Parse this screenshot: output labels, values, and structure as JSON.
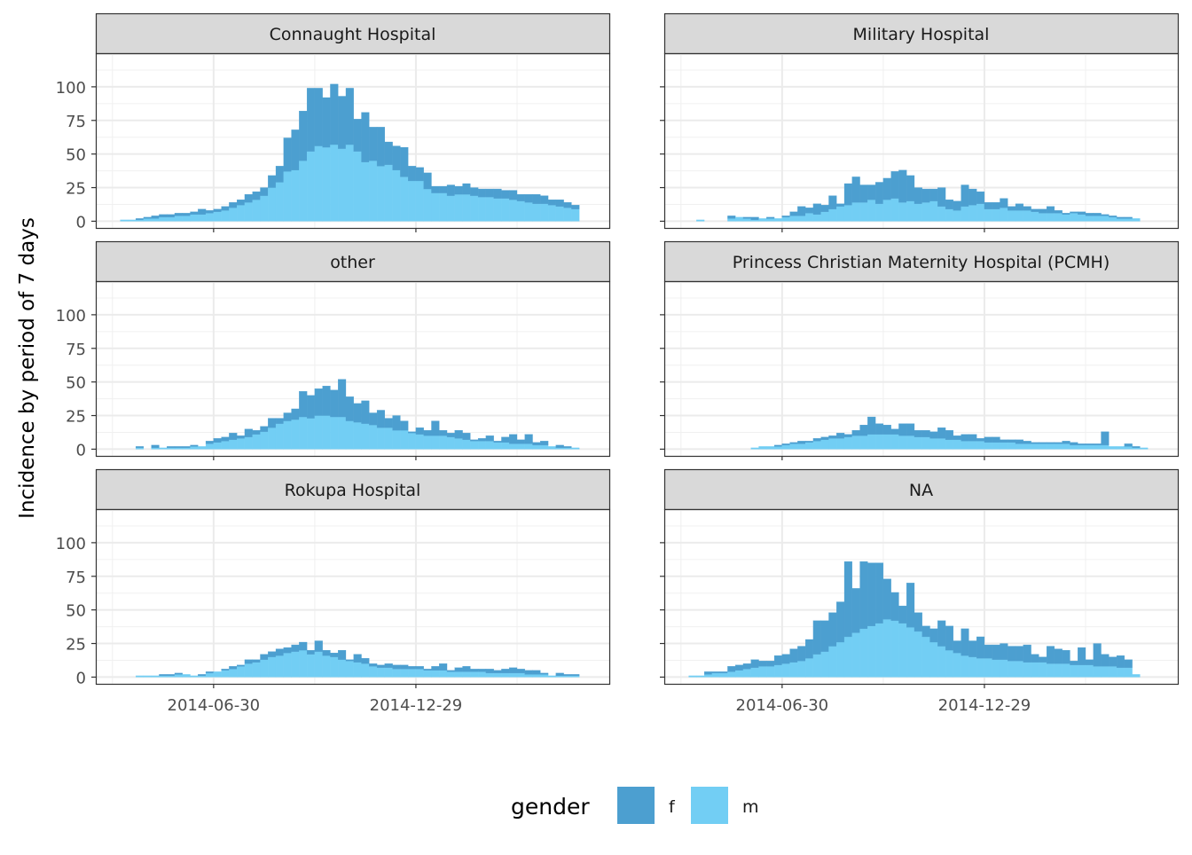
{
  "chart_data": {
    "type": "bar",
    "subtype": "faceted stacked histogram",
    "ylabel": "Incidence by period of 7 days",
    "xlabel": "",
    "ylim": [
      -5,
      125
    ],
    "y_ticks": [
      0,
      25,
      50,
      75,
      100
    ],
    "x_range": [
      "2014-03-16",
      "2015-06-21"
    ],
    "x_ticks": [
      "2014-06-30",
      "2014-12-29"
    ],
    "bin_start": "2014-04-07",
    "bin_days": 7,
    "legend": {
      "title": "gender",
      "position": "bottom",
      "entries": [
        {
          "key": "f",
          "label": "f",
          "color": "#4C9FD0"
        },
        {
          "key": "m",
          "label": "m",
          "color": "#72CEF4"
        }
      ]
    },
    "grid": true,
    "facets": [
      {
        "title": "Connaught Hospital",
        "m": [
          1,
          1,
          1,
          2,
          2,
          3,
          3,
          4,
          4,
          5,
          5,
          6,
          7,
          8,
          10,
          12,
          14,
          16,
          19,
          25,
          29,
          37,
          38,
          45,
          52,
          56,
          55,
          57,
          54,
          57,
          52,
          44,
          45,
          41,
          42,
          38,
          33,
          30,
          30,
          24,
          21,
          21,
          19,
          20,
          20,
          19,
          18,
          18,
          17,
          17,
          16,
          15,
          14,
          13,
          13,
          12,
          11,
          10,
          9
        ],
        "f": [
          0,
          0,
          1,
          1,
          2,
          2,
          2,
          2,
          2,
          2,
          4,
          2,
          2,
          3,
          4,
          4,
          6,
          6,
          6,
          9,
          12,
          25,
          30,
          37,
          47,
          43,
          37,
          45,
          39,
          42,
          24,
          37,
          25,
          29,
          17,
          18,
          22,
          11,
          10,
          12,
          5,
          5,
          8,
          6,
          8,
          6,
          6,
          6,
          7,
          6,
          7,
          5,
          6,
          7,
          6,
          4,
          5,
          4,
          3
        ],
        "lanes": [
          0,
          1,
          1,
          0,
          1,
          0,
          1,
          0,
          1,
          0,
          1,
          0,
          1,
          0,
          1,
          0,
          1,
          0,
          1,
          0,
          1,
          0,
          1,
          0,
          1,
          0,
          1,
          0,
          1,
          0,
          1,
          0,
          1,
          0,
          1,
          0,
          1,
          0,
          1,
          0,
          1,
          0,
          1,
          0,
          1,
          0,
          1,
          0,
          1,
          0,
          1,
          0,
          1,
          0,
          1,
          0,
          1,
          0,
          1
        ]
      },
      {
        "title": "Military Hospital",
        "m": [
          0,
          1,
          0,
          0,
          0,
          2,
          3,
          2,
          1,
          2,
          2,
          2,
          3,
          4,
          4,
          6,
          5,
          7,
          9,
          11,
          12,
          14,
          14,
          16,
          13,
          16,
          17,
          14,
          15,
          13,
          14,
          15,
          11,
          9,
          8,
          11,
          12,
          13,
          9,
          9,
          10,
          8,
          8,
          8,
          7,
          6,
          6,
          6,
          5,
          6,
          5,
          4,
          4,
          4,
          3,
          2,
          2,
          2
        ],
        "f": [
          0,
          0,
          0,
          0,
          0,
          2,
          0,
          1,
          2,
          0,
          1,
          0,
          1,
          3,
          7,
          4,
          8,
          5,
          10,
          2,
          16,
          19,
          13,
          11,
          16,
          16,
          20,
          24,
          19,
          12,
          10,
          9,
          14,
          7,
          7,
          16,
          12,
          9,
          5,
          5,
          7,
          3,
          5,
          3,
          2,
          3,
          5,
          2,
          1,
          1,
          2,
          2,
          2,
          1,
          1,
          1,
          1,
          0
        ],
        "lanes": [
          0,
          1,
          0,
          1,
          1,
          0,
          0,
          0,
          1,
          0,
          1,
          0,
          1,
          0,
          1,
          0,
          1,
          0,
          1,
          0,
          1,
          0,
          1,
          0,
          1,
          0,
          1,
          0,
          1,
          0,
          1,
          0,
          1,
          0,
          1,
          0,
          1,
          0,
          1,
          0,
          1,
          0,
          1,
          0,
          1,
          0,
          1,
          0,
          1,
          0,
          1,
          0,
          1,
          0,
          1,
          0,
          1,
          0
        ]
      },
      {
        "title": "other",
        "m": [
          0,
          0,
          1,
          0,
          1,
          1,
          1,
          1,
          1,
          2,
          2,
          4,
          5,
          6,
          7,
          8,
          9,
          11,
          13,
          16,
          19,
          21,
          22,
          24,
          23,
          25,
          25,
          24,
          24,
          21,
          20,
          19,
          18,
          16,
          16,
          14,
          14,
          12,
          11,
          10,
          10,
          10,
          9,
          8,
          7,
          6,
          6,
          6,
          5,
          5,
          4,
          4,
          4,
          3,
          3,
          2,
          1,
          1,
          1
        ],
        "f": [
          0,
          0,
          1,
          0,
          2,
          0,
          1,
          1,
          1,
          1,
          0,
          2,
          3,
          3,
          5,
          2,
          6,
          3,
          4,
          7,
          4,
          6,
          8,
          19,
          17,
          20,
          22,
          20,
          28,
          18,
          14,
          17,
          9,
          13,
          7,
          11,
          7,
          1,
          5,
          4,
          11,
          4,
          3,
          6,
          5,
          1,
          2,
          4,
          1,
          4,
          7,
          3,
          7,
          2,
          3,
          0,
          2,
          1,
          0
        ],
        "lanes": [
          0,
          1,
          0,
          1,
          0,
          1,
          0,
          1,
          0,
          1,
          0,
          1,
          0,
          1,
          0,
          1,
          0,
          1,
          0,
          1,
          0,
          1,
          0,
          1,
          0,
          1,
          0,
          1,
          0,
          1,
          0,
          1,
          0,
          1,
          0,
          1,
          0,
          1,
          0,
          1,
          0,
          1,
          0,
          1,
          0,
          1,
          0,
          1,
          0,
          1,
          0,
          1,
          0,
          1,
          0,
          1,
          0,
          1,
          0
        ]
      },
      {
        "title": "Princess Christian Maternity Hospital (PCMH)",
        "m": [
          0,
          0,
          0,
          0,
          0,
          0,
          0,
          0,
          1,
          2,
          2,
          2,
          3,
          4,
          4,
          5,
          6,
          7,
          8,
          8,
          9,
          10,
          10,
          11,
          11,
          11,
          11,
          10,
          10,
          9,
          9,
          8,
          8,
          7,
          7,
          6,
          6,
          6,
          5,
          5,
          5,
          5,
          4,
          4,
          4,
          4,
          4,
          4,
          4,
          3,
          3,
          3,
          3,
          3,
          2,
          2,
          2,
          1,
          1
        ],
        "f": [
          0,
          0,
          0,
          0,
          0,
          0,
          0,
          0,
          0,
          0,
          0,
          1,
          1,
          1,
          2,
          1,
          2,
          2,
          2,
          4,
          2,
          4,
          8,
          13,
          8,
          7,
          4,
          9,
          9,
          5,
          5,
          5,
          8,
          7,
          3,
          5,
          5,
          2,
          4,
          4,
          2,
          2,
          3,
          2,
          1,
          1,
          1,
          1,
          2,
          2,
          1,
          1,
          1,
          10,
          0,
          0,
          2,
          1,
          0
        ],
        "lanes": [
          0,
          1,
          0,
          1,
          0,
          1,
          0,
          1,
          0,
          1,
          0,
          1,
          0,
          1,
          0,
          1,
          0,
          1,
          0,
          1,
          0,
          1,
          0,
          1,
          0,
          1,
          0,
          1,
          0,
          1,
          0,
          1,
          0,
          1,
          0,
          1,
          0,
          1,
          0,
          1,
          0,
          1,
          0,
          1,
          0,
          1,
          0,
          1,
          0,
          1,
          0,
          1,
          0,
          1,
          0,
          1,
          0,
          1,
          0
        ]
      },
      {
        "title": "Rokupa Hospital",
        "m": [
          0,
          0,
          1,
          1,
          1,
          1,
          1,
          2,
          2,
          1,
          1,
          3,
          4,
          5,
          6,
          8,
          10,
          11,
          13,
          15,
          16,
          18,
          19,
          20,
          17,
          19,
          16,
          15,
          13,
          12,
          11,
          10,
          8,
          7,
          7,
          6,
          6,
          6,
          6,
          5,
          5,
          5,
          4,
          4,
          4,
          4,
          4,
          3,
          3,
          3,
          3,
          3,
          2,
          2,
          2,
          1,
          1,
          1,
          1
        ],
        "f": [
          0,
          0,
          0,
          0,
          0,
          1,
          1,
          1,
          0,
          0,
          1,
          1,
          0,
          1,
          2,
          1,
          3,
          2,
          4,
          4,
          5,
          4,
          5,
          6,
          3,
          8,
          4,
          3,
          7,
          1,
          6,
          4,
          2,
          2,
          3,
          3,
          3,
          2,
          2,
          1,
          3,
          5,
          1,
          3,
          4,
          2,
          2,
          3,
          2,
          3,
          4,
          3,
          3,
          3,
          1,
          0,
          2,
          1,
          1
        ],
        "lanes": [
          0,
          1,
          0,
          1,
          0,
          1,
          0,
          1,
          0,
          1,
          0,
          1,
          0,
          1,
          0,
          1,
          0,
          1,
          0,
          1,
          0,
          1,
          0,
          1,
          0,
          1,
          0,
          1,
          0,
          1,
          0,
          1,
          0,
          1,
          0,
          1,
          0,
          1,
          0,
          1,
          0,
          1,
          0,
          1,
          0,
          1,
          0,
          1,
          0,
          1,
          0,
          1,
          0,
          1,
          0,
          1,
          0,
          1,
          0
        ]
      },
      {
        "title": "NA",
        "m": [
          1,
          1,
          2,
          3,
          3,
          4,
          5,
          6,
          7,
          8,
          8,
          9,
          10,
          11,
          12,
          14,
          17,
          19,
          23,
          26,
          30,
          33,
          36,
          38,
          40,
          43,
          42,
          40,
          37,
          34,
          30,
          26,
          23,
          20,
          18,
          16,
          15,
          14,
          14,
          13,
          13,
          12,
          12,
          11,
          11,
          11,
          10,
          10,
          10,
          9,
          9,
          9,
          8,
          8,
          8,
          7,
          7,
          2
        ],
        "f": [
          0,
          0,
          2,
          1,
          1,
          4,
          4,
          4,
          6,
          4,
          4,
          7,
          7,
          10,
          11,
          14,
          25,
          23,
          25,
          30,
          56,
          33,
          50,
          47,
          45,
          30,
          21,
          13,
          33,
          14,
          8,
          10,
          19,
          18,
          9,
          20,
          12,
          16,
          10,
          11,
          12,
          11,
          11,
          13,
          6,
          4,
          13,
          11,
          10,
          3,
          13,
          4,
          17,
          9,
          7,
          9,
          6,
          0
        ],
        "lanes": [
          0,
          1,
          0,
          1,
          0,
          1,
          0,
          1,
          0,
          1,
          0,
          1,
          0,
          1,
          0,
          1,
          0,
          1,
          0,
          1,
          0,
          1,
          0,
          1,
          0,
          1,
          0,
          1,
          0,
          1,
          0,
          1,
          0,
          1,
          0,
          1,
          0,
          1,
          0,
          1,
          0,
          1,
          0,
          1,
          0,
          1,
          0,
          1,
          0,
          1,
          0,
          1,
          0,
          1,
          0,
          1,
          0,
          1
        ]
      }
    ]
  }
}
